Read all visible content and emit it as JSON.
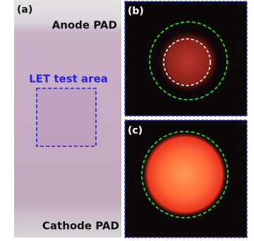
{
  "panel_a": {
    "label": "(a)",
    "top_label": "Anode PAD",
    "area_label": "LET test area",
    "bottom_label": "Cathode PAD"
  },
  "panel_b": {
    "label": "(b)"
  },
  "panel_c": {
    "label": "(c)"
  }
}
